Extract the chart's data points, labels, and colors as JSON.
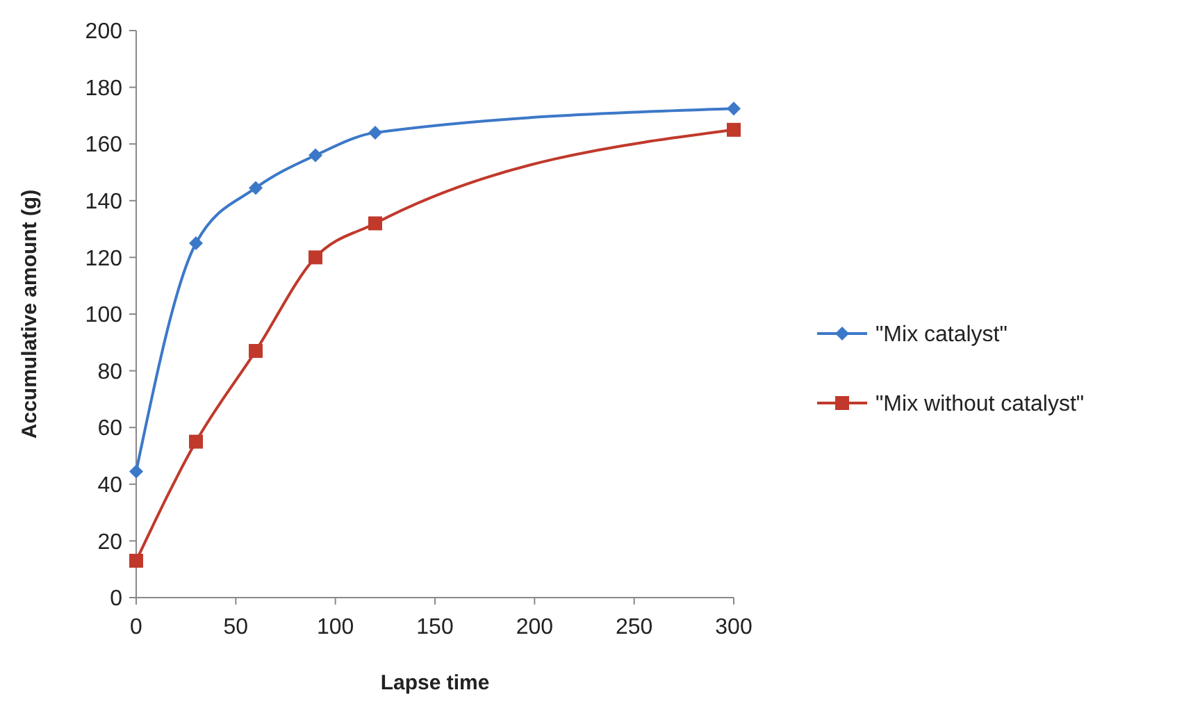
{
  "chart_data": {
    "type": "line",
    "xlabel": "Lapse time",
    "ylabel": "Accumulative amount (g)",
    "x": [
      0,
      30,
      60,
      90,
      120,
      300
    ],
    "series": [
      {
        "name": "\"Mix catalyst\"",
        "color": "#3c78c8",
        "marker": "diamond",
        "values": [
          44.5,
          125,
          144.5,
          156,
          164,
          172.5
        ]
      },
      {
        "name": "\"Mix without catalyst\"",
        "color": "#c0392b",
        "marker": "square",
        "values": [
          13,
          55,
          87,
          120,
          132,
          165
        ]
      }
    ],
    "xlim": [
      0,
      300
    ],
    "xticks": [
      0,
      50,
      100,
      150,
      200,
      250,
      300
    ],
    "ylim": [
      0,
      200
    ],
    "yticks": [
      0,
      20,
      40,
      60,
      80,
      100,
      120,
      140,
      160,
      180,
      200
    ],
    "legend": "right",
    "grid": false
  }
}
